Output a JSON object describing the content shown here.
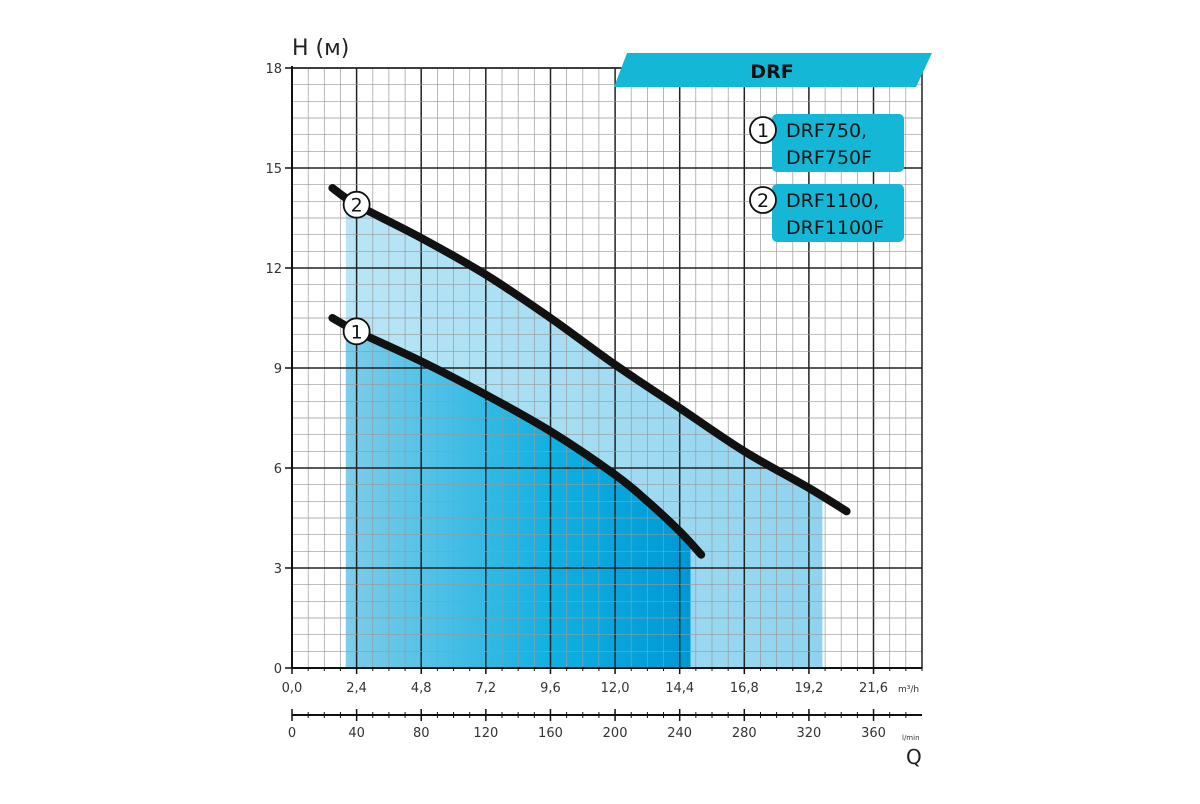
{
  "chart_data": {
    "type": "line",
    "title": "DRF",
    "ylabel": "H (м)",
    "xlabel_secondary": "Q",
    "x_unit_primary": "m³/h",
    "x_unit_secondary": "l/min",
    "ylim": [
      0,
      18
    ],
    "xlim": [
      0,
      23.4
    ],
    "y_ticks": [
      "0",
      "3",
      "6",
      "9",
      "12",
      "15",
      "18"
    ],
    "x_ticks_primary": [
      "0,0",
      "2,4",
      "4,8",
      "7,2",
      "9,6",
      "12,0",
      "14,4",
      "16,8",
      "19,2",
      "21,6"
    ],
    "x_ticks_secondary": [
      "0",
      "40",
      "80",
      "120",
      "160",
      "200",
      "240",
      "280",
      "320",
      "360"
    ],
    "grid": true,
    "legend_position": "top-right",
    "series": [
      {
        "id": "1",
        "name": "DRF750, DRF750F",
        "name_lines": [
          "DRF750,",
          "DRF750F"
        ],
        "x": [
          1.5,
          2.4,
          4.8,
          7.2,
          9.6,
          12.0,
          13.2,
          14.4,
          15.2
        ],
        "y": [
          10.5,
          10.1,
          9.2,
          8.2,
          7.1,
          5.8,
          5.0,
          4.1,
          3.4
        ]
      },
      {
        "id": "2",
        "name": "DRF1100, DRF1100F",
        "name_lines": [
          "DRF1100,",
          "DRF1100F"
        ],
        "x": [
          1.5,
          2.4,
          4.8,
          7.2,
          9.6,
          12.0,
          14.4,
          16.8,
          19.2,
          20.6
        ],
        "y": [
          14.4,
          13.9,
          12.9,
          11.8,
          10.5,
          9.1,
          7.8,
          6.5,
          5.4,
          4.7
        ]
      }
    ],
    "operating_ranges": [
      {
        "series": "2",
        "x_min": 2.0,
        "x_max": 19.7,
        "fill": "#a9def3"
      },
      {
        "series": "1",
        "x_min": 2.0,
        "x_max": 14.8,
        "fill": "#00a6dc"
      }
    ],
    "colors": {
      "accent": "#14b7d6",
      "curve": "#111111",
      "grid_major": "#222222",
      "grid_minor": "#999999"
    }
  }
}
